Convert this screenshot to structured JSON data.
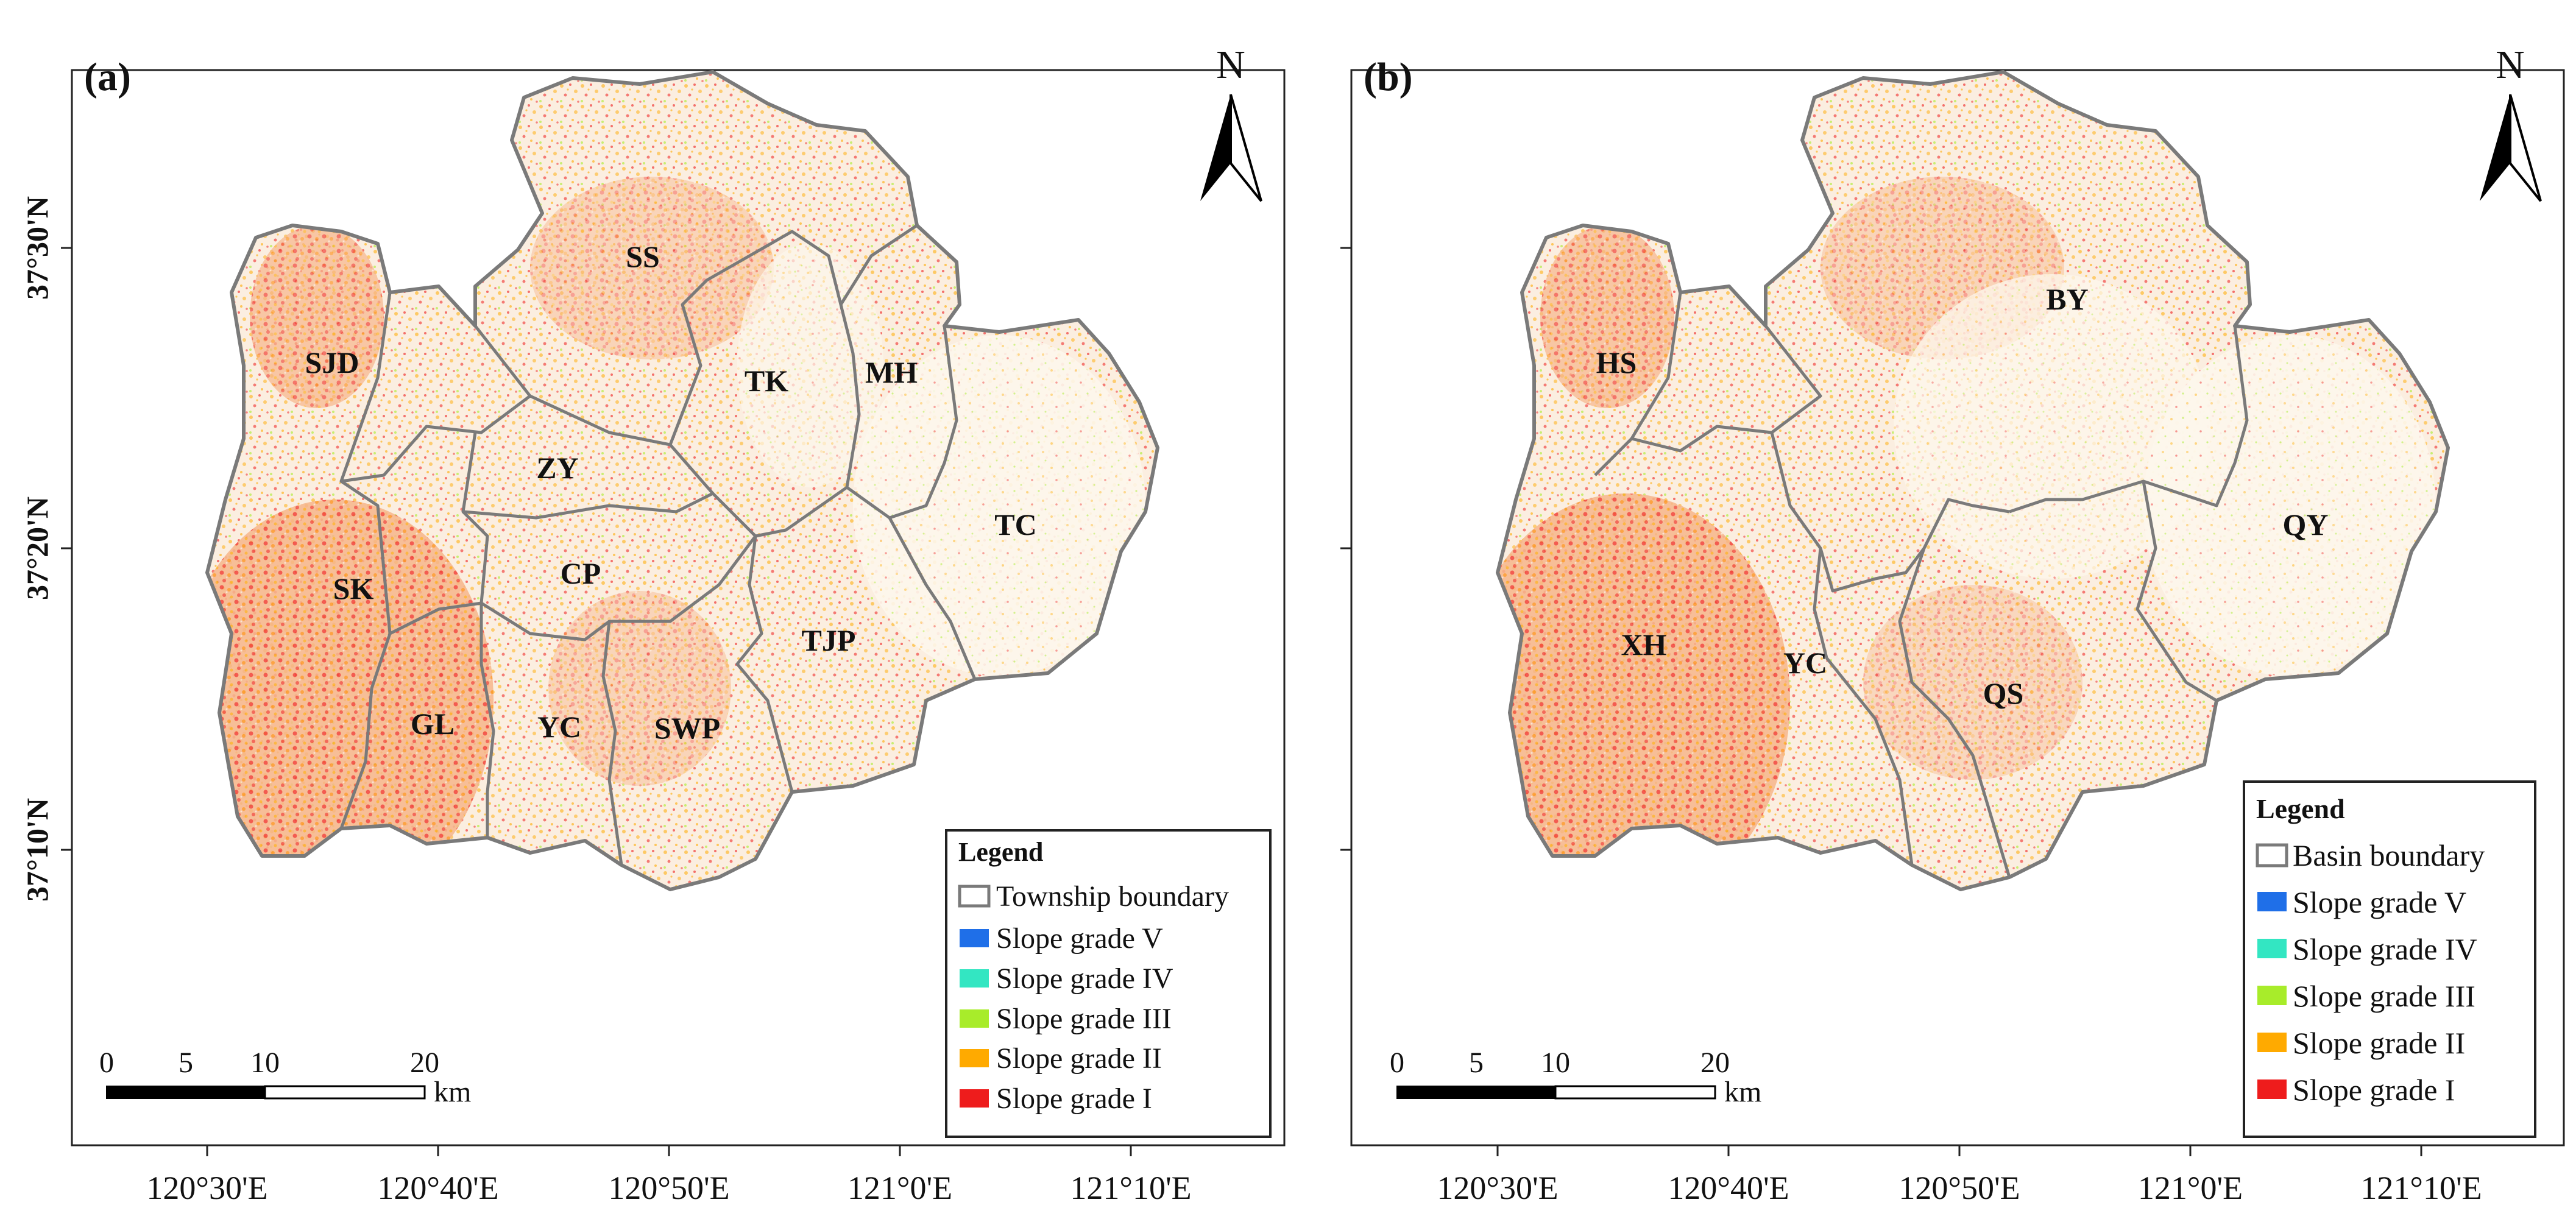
{
  "lat_ticks": [
    "37°30'N",
    "37°20'N",
    "37°10'N"
  ],
  "lon_ticks": [
    "120°30'E",
    "120°40'E",
    "120°50'E",
    "121°0'E",
    "121°10'E"
  ],
  "north_label": "N",
  "scale_bar": {
    "labels": [
      "0",
      "5",
      "10",
      "20"
    ],
    "unit": "km"
  },
  "colors": {
    "slope_v": "#1f6fe8",
    "slope_iv": "#33e6c2",
    "slope_iii": "#a8ec2a",
    "slope_ii": "#ffaa00",
    "slope_i": "#ee1c1c",
    "boundary": "#7a7a7a"
  },
  "panels": [
    {
      "panel_label": "(a)",
      "legend": {
        "title": "Legend",
        "items": [
          {
            "label": "Township boundary",
            "type": "boundary"
          },
          {
            "label": "Slope grade V",
            "type": "slope_v"
          },
          {
            "label": "Slope grade IV",
            "type": "slope_iv"
          },
          {
            "label": "Slope grade III",
            "type": "slope_iii"
          },
          {
            "label": "Slope grade II",
            "type": "slope_ii"
          },
          {
            "label": "Slope grade I",
            "type": "slope_i"
          }
        ]
      },
      "regions": [
        "SS",
        "SJD",
        "TK",
        "MH",
        "ZY",
        "TC",
        "CP",
        "SK",
        "TJP",
        "GL",
        "YC",
        "SWP"
      ]
    },
    {
      "panel_label": "(b)",
      "legend": {
        "title": "Legend",
        "items": [
          {
            "label": "Basin boundary",
            "type": "boundary"
          },
          {
            "label": "Slope grade V",
            "type": "slope_v"
          },
          {
            "label": "Slope grade IV",
            "type": "slope_iv"
          },
          {
            "label": "Slope grade III",
            "type": "slope_iii"
          },
          {
            "label": "Slope grade II",
            "type": "slope_ii"
          },
          {
            "label": "Slope grade I",
            "type": "slope_i"
          }
        ]
      },
      "regions": [
        "BY",
        "HS",
        "QY",
        "XH",
        "YC",
        "QS"
      ]
    }
  ]
}
